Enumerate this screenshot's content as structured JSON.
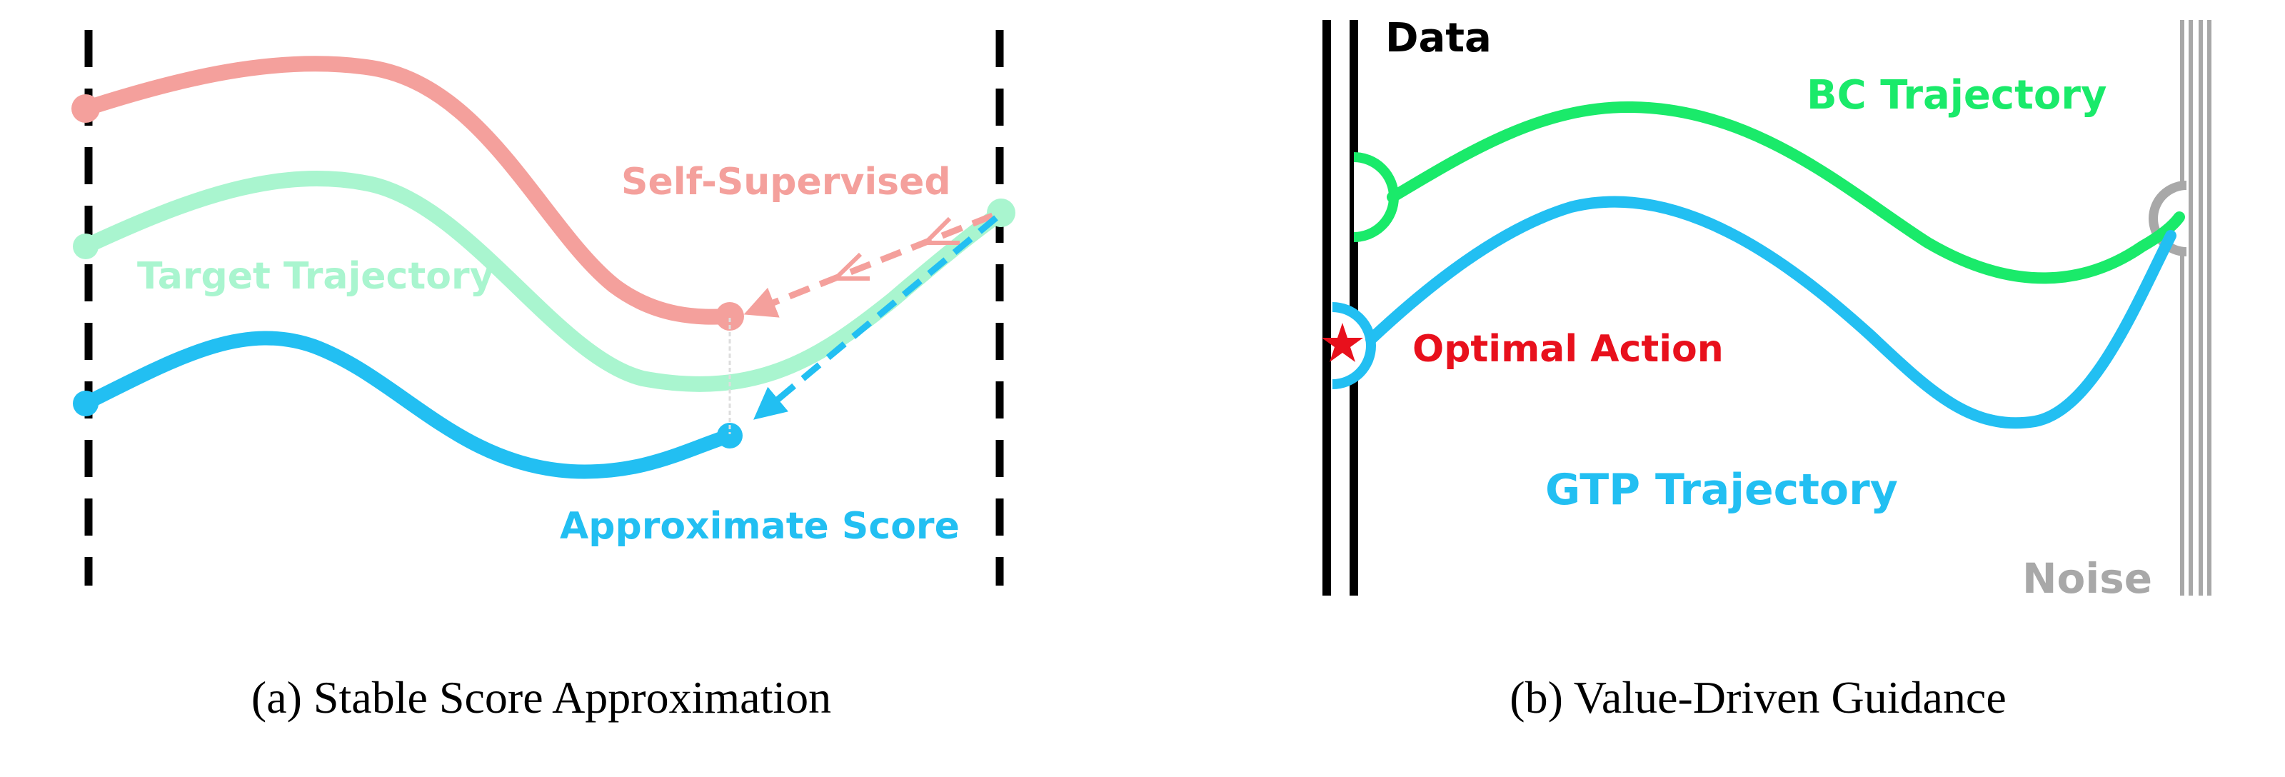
{
  "panel_a": {
    "labels": {
      "self_supervised": "Self-Supervised",
      "target_trajectory": "Target Trajectory",
      "approximate_score": "Approximate Score"
    },
    "caption": "(a) Stable Score Approximation"
  },
  "panel_b": {
    "labels": {
      "data": "Data",
      "bc_trajectory": "BC Trajectory",
      "optimal_action": "Optimal Action",
      "gtp_trajectory": "GTP Trajectory",
      "noise": "Noise"
    },
    "caption": "(b) Value-Driven Guidance"
  },
  "colors": {
    "pink": "#f4a09c",
    "mint": "#a9f5cf",
    "cyan": "#22bff2",
    "green": "#1aea6a",
    "red": "#e8101c",
    "gray": "#a8a8a8",
    "black": "#000000"
  },
  "icons": {
    "optimal_marker": "star-icon"
  }
}
